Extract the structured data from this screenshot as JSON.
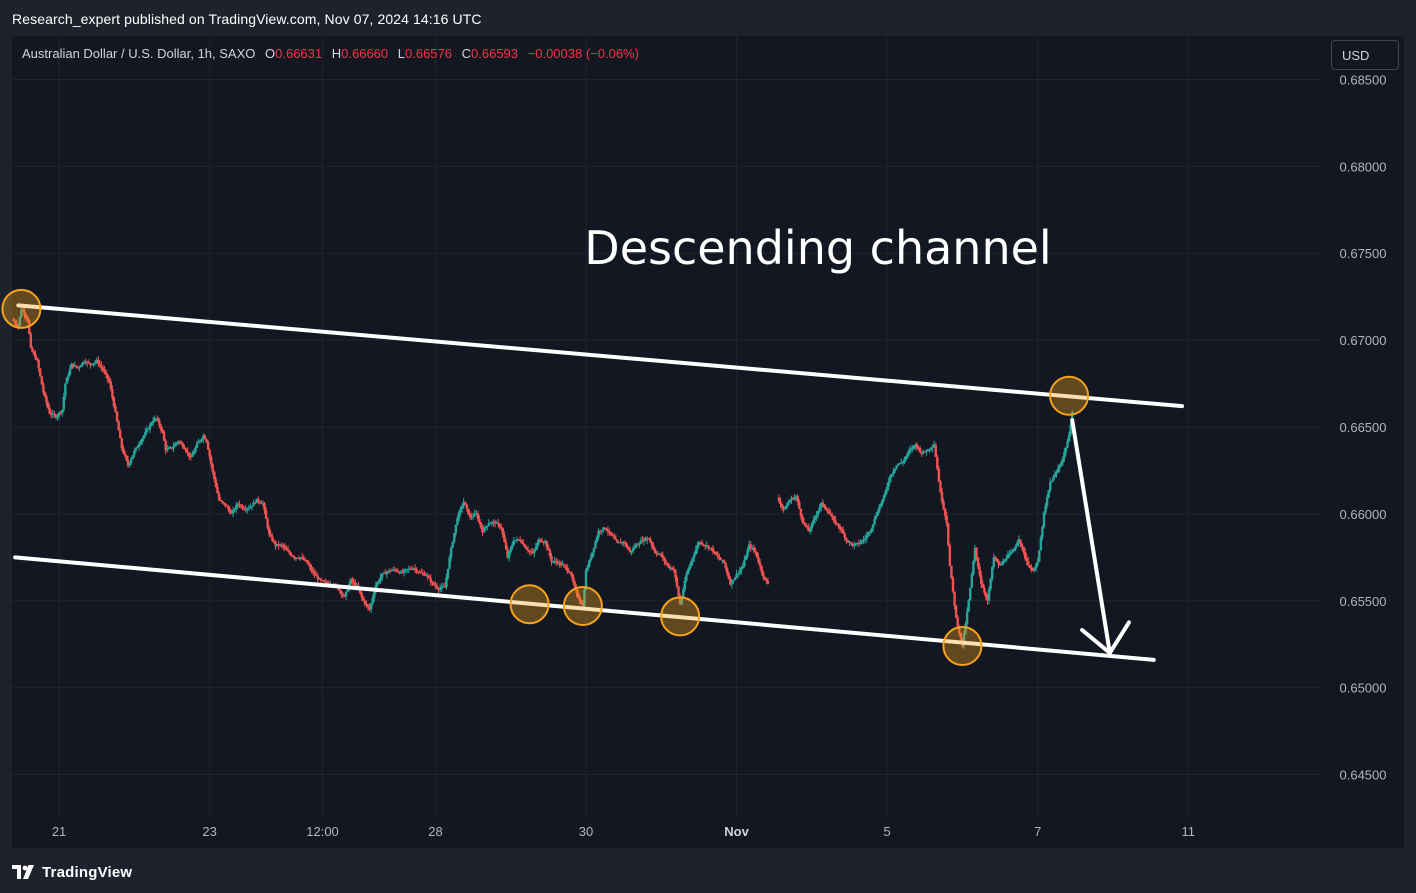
{
  "header": {
    "published": "Research_expert published on TradingView.com, Nov 07, 2024 14:16 UTC"
  },
  "legend": {
    "symbol": "Australian Dollar / U.S. Dollar, 1h, SAXO",
    "o_label": "O",
    "o_value": "0.66631",
    "h_label": "H",
    "h_value": "0.66660",
    "l_label": "L",
    "l_value": "0.66576",
    "c_label": "C",
    "c_value": "0.66593",
    "change": "−0.00038 (−0.06%)"
  },
  "currency_button": {
    "label": "USD"
  },
  "footer": {
    "brand": "TradingView"
  },
  "colors": {
    "up": "#26a69a",
    "down": "#ef5350",
    "background": "#131722",
    "channel_line": "#ffffff",
    "touch_circle": "#f7a21b"
  },
  "chart_data": {
    "type": "candlestick",
    "symbol": "AUDUSD",
    "interval": "1h",
    "x_unit": "trading hours since Oct 18, 2024 00:00 UTC (Mon–Fri)",
    "y_axis": {
      "side": "right",
      "range": [
        0.6425,
        0.6875
      ],
      "ticks": [
        "0.68500",
        "0.68000",
        "0.67500",
        "0.67000",
        "0.66500",
        "0.66000",
        "0.65500",
        "0.65000",
        "0.64500"
      ]
    },
    "x_axis": {
      "ticks": [
        {
          "label": "21",
          "x": 72,
          "bold": false
        },
        {
          "label": "23",
          "x": 120,
          "bold": false
        },
        {
          "label": "12:00",
          "x": 156,
          "bold": false
        },
        {
          "label": "28",
          "x": 192,
          "bold": false
        },
        {
          "label": "30",
          "x": 240,
          "bold": false
        },
        {
          "label": "Nov",
          "x": 288,
          "bold": true
        },
        {
          "label": "5",
          "x": 336,
          "bold": false
        },
        {
          "label": "7",
          "x": 384,
          "bold": false
        },
        {
          "label": "11",
          "x": 432,
          "bold": false
        }
      ]
    },
    "x_range": [
      57,
      474
    ],
    "grid": true,
    "annotation": "Descending channel",
    "channel": {
      "upper": [
        {
          "x": 59,
          "y": 0.672
        },
        {
          "x": 430,
          "y": 0.6662
        }
      ],
      "lower": [
        {
          "x": 58,
          "y": 0.6575
        },
        {
          "x": 421,
          "y": 0.6516
        }
      ]
    },
    "projection_arrow": [
      {
        "x": 395,
        "y": 0.6654
      },
      {
        "x": 407,
        "y": 0.652
      }
    ],
    "touch_points": [
      {
        "x": 60,
        "y": 0.6718
      },
      {
        "x": 222,
        "y": 0.6548
      },
      {
        "x": 239,
        "y": 0.6547
      },
      {
        "x": 270,
        "y": 0.6541
      },
      {
        "x": 360,
        "y": 0.6524
      },
      {
        "x": 394,
        "y": 0.6668
      }
    ],
    "path_points": [
      [
        57,
        0.6712
      ],
      [
        59,
        0.6708
      ],
      [
        60,
        0.6718
      ],
      [
        62,
        0.6712
      ],
      [
        63,
        0.6695
      ],
      [
        65,
        0.6688
      ],
      [
        67,
        0.667
      ],
      [
        69,
        0.6658
      ],
      [
        71,
        0.6656
      ],
      [
        73,
        0.666
      ],
      [
        74,
        0.6675
      ],
      [
        76,
        0.6686
      ],
      [
        78,
        0.6684
      ],
      [
        80,
        0.6688
      ],
      [
        82,
        0.6686
      ],
      [
        84,
        0.6688
      ],
      [
        86,
        0.6683
      ],
      [
        88,
        0.6676
      ],
      [
        90,
        0.6658
      ],
      [
        92,
        0.6638
      ],
      [
        94,
        0.6628
      ],
      [
        96,
        0.6636
      ],
      [
        98,
        0.6642
      ],
      [
        100,
        0.6648
      ],
      [
        102,
        0.6654
      ],
      [
        103,
        0.6655
      ],
      [
        105,
        0.6647
      ],
      [
        106,
        0.6637
      ],
      [
        108,
        0.6638
      ],
      [
        110,
        0.6642
      ],
      [
        112,
        0.6638
      ],
      [
        114,
        0.6632
      ],
      [
        116,
        0.664
      ],
      [
        118,
        0.6645
      ],
      [
        119,
        0.6642
      ],
      [
        121,
        0.6624
      ],
      [
        123,
        0.6608
      ],
      [
        125,
        0.6605
      ],
      [
        127,
        0.66
      ],
      [
        129,
        0.6606
      ],
      [
        131,
        0.6603
      ],
      [
        133,
        0.6604
      ],
      [
        135,
        0.6608
      ],
      [
        137,
        0.6606
      ],
      [
        139,
        0.6588
      ],
      [
        141,
        0.6582
      ],
      [
        143,
        0.6582
      ],
      [
        145,
        0.6578
      ],
      [
        147,
        0.6575
      ],
      [
        149,
        0.6575
      ],
      [
        151,
        0.6572
      ],
      [
        153,
        0.6566
      ],
      [
        155,
        0.6562
      ],
      [
        157,
        0.656
      ],
      [
        159,
        0.656
      ],
      [
        161,
        0.6557
      ],
      [
        163,
        0.6552
      ],
      [
        165,
        0.6562
      ],
      [
        167,
        0.6558
      ],
      [
        169,
        0.655
      ],
      [
        171,
        0.6545
      ],
      [
        173,
        0.6559
      ],
      [
        175,
        0.6565
      ],
      [
        177,
        0.6567
      ],
      [
        179,
        0.6568
      ],
      [
        181,
        0.6566
      ],
      [
        183,
        0.6568
      ],
      [
        185,
        0.6569
      ],
      [
        187,
        0.6566
      ],
      [
        189,
        0.6565
      ],
      [
        191,
        0.656
      ],
      [
        193,
        0.6557
      ],
      [
        195,
        0.6558
      ],
      [
        197,
        0.658
      ],
      [
        199,
        0.6598
      ],
      [
        201,
        0.6607
      ],
      [
        203,
        0.6598
      ],
      [
        205,
        0.66
      ],
      [
        207,
        0.659
      ],
      [
        209,
        0.6595
      ],
      [
        211,
        0.6595
      ],
      [
        213,
        0.6592
      ],
      [
        215,
        0.6575
      ],
      [
        217,
        0.6585
      ],
      [
        219,
        0.6585
      ],
      [
        221,
        0.658
      ],
      [
        223,
        0.6577
      ],
      [
        225,
        0.6585
      ],
      [
        227,
        0.6584
      ],
      [
        229,
        0.6573
      ],
      [
        231,
        0.6572
      ],
      [
        233,
        0.657
      ],
      [
        235,
        0.6566
      ],
      [
        237,
        0.6554
      ],
      [
        239,
        0.6547
      ],
      [
        240,
        0.6567
      ],
      [
        242,
        0.6578
      ],
      [
        244,
        0.659
      ],
      [
        246,
        0.6592
      ],
      [
        248,
        0.6588
      ],
      [
        250,
        0.6583
      ],
      [
        252,
        0.6584
      ],
      [
        254,
        0.6578
      ],
      [
        256,
        0.6582
      ],
      [
        258,
        0.6585
      ],
      [
        260,
        0.6586
      ],
      [
        262,
        0.6578
      ],
      [
        264,
        0.6576
      ],
      [
        266,
        0.657
      ],
      [
        268,
        0.6568
      ],
      [
        270,
        0.6548
      ],
      [
        272,
        0.6565
      ],
      [
        274,
        0.6575
      ],
      [
        276,
        0.6584
      ],
      [
        278,
        0.6582
      ],
      [
        280,
        0.658
      ],
      [
        282,
        0.6575
      ],
      [
        284,
        0.6572
      ],
      [
        286,
        0.656
      ],
      [
        288,
        0.6565
      ],
      [
        290,
        0.657
      ],
      [
        292,
        0.6582
      ],
      [
        294,
        0.6578
      ],
      [
        296,
        0.6567
      ],
      [
        297,
        0.6562
      ],
      [
        298,
        0.656
      ],
      [
        301,
        0.661
      ],
      [
        303,
        0.6602
      ],
      [
        305,
        0.6608
      ],
      [
        307,
        0.661
      ],
      [
        309,
        0.6596
      ],
      [
        311,
        0.659
      ],
      [
        313,
        0.6598
      ],
      [
        315,
        0.6606
      ],
      [
        317,
        0.6602
      ],
      [
        319,
        0.6596
      ],
      [
        321,
        0.6592
      ],
      [
        323,
        0.6585
      ],
      [
        325,
        0.6582
      ],
      [
        327,
        0.6583
      ],
      [
        329,
        0.6586
      ],
      [
        331,
        0.6592
      ],
      [
        333,
        0.6602
      ],
      [
        335,
        0.661
      ],
      [
        337,
        0.6622
      ],
      [
        339,
        0.6628
      ],
      [
        341,
        0.663
      ],
      [
        343,
        0.6636
      ],
      [
        345,
        0.664
      ],
      [
        347,
        0.6635
      ],
      [
        349,
        0.6637
      ],
      [
        351,
        0.664
      ],
      [
        353,
        0.6612
      ],
      [
        355,
        0.6595
      ],
      [
        356,
        0.657
      ],
      [
        358,
        0.654
      ],
      [
        360,
        0.6524
      ],
      [
        362,
        0.655
      ],
      [
        364,
        0.658
      ],
      [
        366,
        0.656
      ],
      [
        368,
        0.655
      ],
      [
        370,
        0.6575
      ],
      [
        372,
        0.657
      ],
      [
        374,
        0.6575
      ],
      [
        376,
        0.6578
      ],
      [
        378,
        0.6586
      ],
      [
        380,
        0.6575
      ],
      [
        382,
        0.6567
      ],
      [
        384,
        0.6572
      ],
      [
        386,
        0.66
      ],
      [
        388,
        0.6618
      ],
      [
        390,
        0.6624
      ],
      [
        392,
        0.6632
      ],
      [
        394,
        0.6645
      ],
      [
        395,
        0.6659
      ]
    ]
  }
}
